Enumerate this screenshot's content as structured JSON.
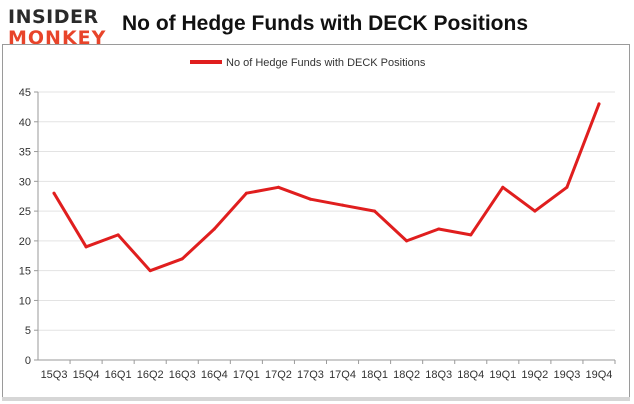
{
  "logo": {
    "line1": "INSIDER",
    "line2": "MONKEY"
  },
  "chart_data": {
    "type": "line",
    "title": "No of Hedge Funds with DECK Positions",
    "xlabel": "",
    "ylabel": "",
    "ylim": [
      0,
      45
    ],
    "yticks": [
      0,
      5,
      10,
      15,
      20,
      25,
      30,
      35,
      40,
      45
    ],
    "grid": true,
    "legend_position": "top-center",
    "categories": [
      "15Q3",
      "15Q4",
      "16Q1",
      "16Q2",
      "16Q3",
      "16Q4",
      "17Q1",
      "17Q2",
      "17Q3",
      "17Q4",
      "18Q1",
      "18Q2",
      "18Q3",
      "18Q4",
      "19Q1",
      "19Q2",
      "19Q3",
      "19Q4"
    ],
    "series": [
      {
        "name": "No of Hedge Funds with DECK Positions",
        "color": "#e01e1e",
        "values": [
          28,
          19,
          21,
          15,
          17,
          22,
          28,
          29,
          27,
          26,
          25,
          20,
          22,
          21,
          29,
          25,
          29,
          43
        ]
      }
    ]
  }
}
